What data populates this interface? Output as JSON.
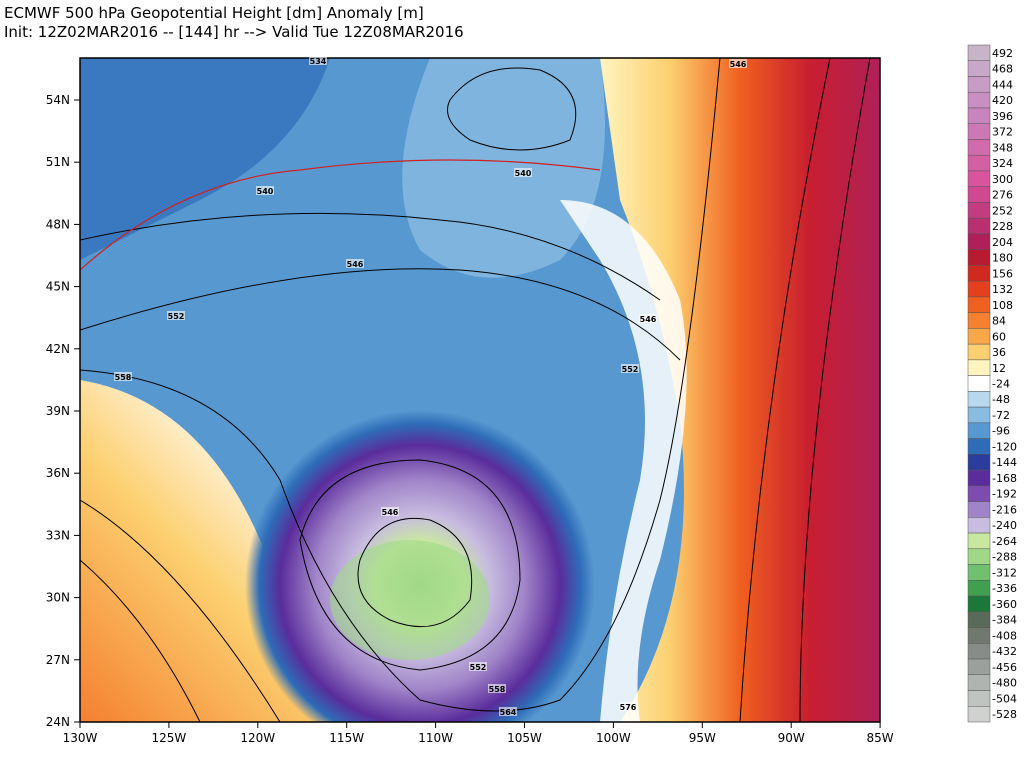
{
  "header": {
    "title": "ECMWF 500 hPa Geopotential Height [dm] Anomaly [m]",
    "subtitle": "Init: 12Z02MAR2016 -- [144] hr --> Valid Tue 12Z08MAR2016"
  },
  "map": {
    "lat_labels": [
      "54N",
      "51N",
      "48N",
      "45N",
      "42N",
      "39N",
      "36N",
      "33N",
      "30N",
      "27N",
      "24N"
    ],
    "lon_labels": [
      "130W",
      "125W",
      "120W",
      "115W",
      "110W",
      "105W",
      "100W",
      "95W",
      "90W",
      "85W"
    ],
    "contour_labels": [
      "534",
      "540",
      "540",
      "546",
      "546",
      "552",
      "552",
      "558",
      "546",
      "552",
      "558",
      "564",
      "576",
      "546"
    ]
  },
  "colorbar": [
    {
      "label": "492",
      "color": "#c8b4c8"
    },
    {
      "label": "468",
      "color": "#c8a8c8"
    },
    {
      "label": "444",
      "color": "#c89cc4"
    },
    {
      "label": "420",
      "color": "#c890c0"
    },
    {
      "label": "396",
      "color": "#c884bc"
    },
    {
      "label": "372",
      "color": "#cc78b4"
    },
    {
      "label": "348",
      "color": "#d06cac"
    },
    {
      "label": "324",
      "color": "#d460a4"
    },
    {
      "label": "300",
      "color": "#d8549c"
    },
    {
      "label": "276",
      "color": "#d04890"
    },
    {
      "label": "252",
      "color": "#c43c80"
    },
    {
      "label": "228",
      "color": "#b83070"
    },
    {
      "label": "204",
      "color": "#b02058"
    },
    {
      "label": "180",
      "color": "#b81a30"
    },
    {
      "label": "156",
      "color": "#d02a20"
    },
    {
      "label": "132",
      "color": "#e44020"
    },
    {
      "label": "108",
      "color": "#f06020"
    },
    {
      "label": "84",
      "color": "#f48030"
    },
    {
      "label": "60",
      "color": "#f8a848"
    },
    {
      "label": "36",
      "color": "#fcd070"
    },
    {
      "label": "12",
      "color": "#fff4c0"
    },
    {
      "label": "-24",
      "color": "#ffffff"
    },
    {
      "label": "-48",
      "color": "#b8d8ec"
    },
    {
      "label": "-72",
      "color": "#88bce0"
    },
    {
      "label": "-96",
      "color": "#5898d0"
    },
    {
      "label": "-120",
      "color": "#2e6cb8"
    },
    {
      "label": "-144",
      "color": "#2a3c9c"
    },
    {
      "label": "-168",
      "color": "#5a2c9c"
    },
    {
      "label": "-192",
      "color": "#7c4cb0"
    },
    {
      "label": "-216",
      "color": "#a084c8"
    },
    {
      "label": "-240",
      "color": "#c8bce0"
    },
    {
      "label": "-264",
      "color": "#c8e8a0"
    },
    {
      "label": "-288",
      "color": "#a0d888"
    },
    {
      "label": "-312",
      "color": "#70c070"
    },
    {
      "label": "-336",
      "color": "#40a050"
    },
    {
      "label": "-360",
      "color": "#1c7838"
    },
    {
      "label": "-384",
      "color": "#5a6a5a"
    },
    {
      "label": "-408",
      "color": "#707870"
    },
    {
      "label": "-432",
      "color": "#888c88"
    },
    {
      "label": "-456",
      "color": "#9ca09c"
    },
    {
      "label": "-480",
      "color": "#b0b4b0"
    },
    {
      "label": "-504",
      "color": "#c0c4c0"
    },
    {
      "label": "-528",
      "color": "#d0d2d0"
    }
  ]
}
